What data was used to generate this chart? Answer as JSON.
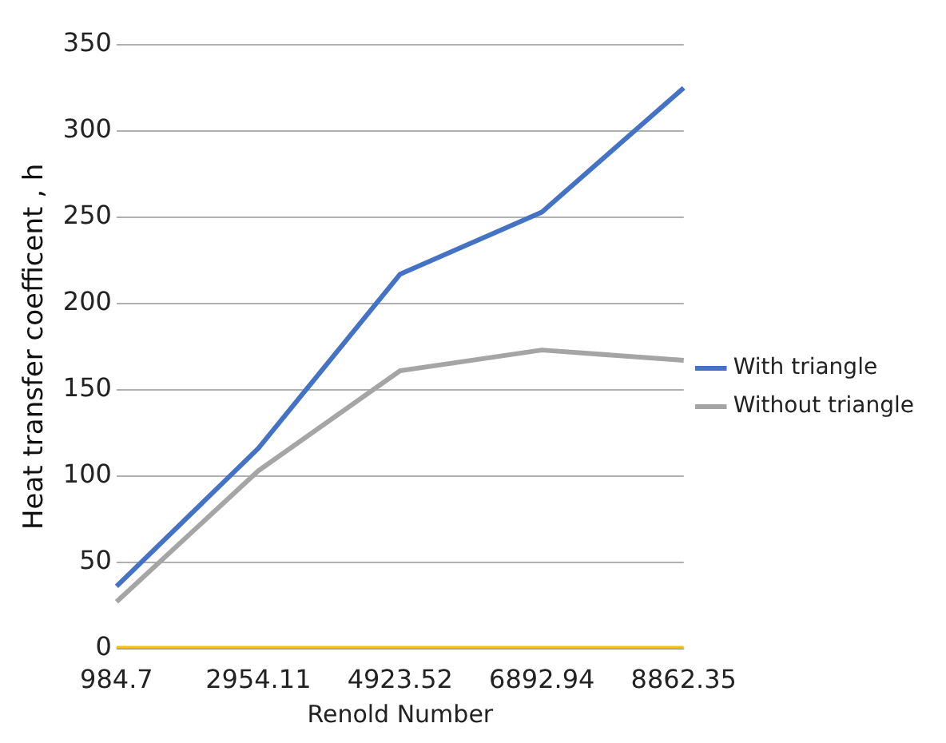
{
  "chart_data": {
    "type": "line",
    "xlabel": "Renold Number",
    "ylabel": "Heat transfer coefficent , h",
    "categories": [
      "984.7",
      "2954.11",
      "4923.52",
      "6892.94",
      "8862.35"
    ],
    "series": [
      {
        "name": "With triangle",
        "color": "#4472c4",
        "values": [
          36,
          116,
          217,
          253,
          325
        ]
      },
      {
        "name": "Without triangle",
        "color": "#a5a5a5",
        "values": [
          27,
          103,
          161,
          173,
          167
        ]
      },
      {
        "color": "#ffc000",
        "values": [
          0,
          0,
          0,
          0,
          0
        ]
      }
    ],
    "ylim": [
      0,
      350
    ],
    "yticks": [
      0,
      50,
      100,
      150,
      200,
      250,
      300,
      350
    ],
    "grid": "y",
    "legend": "right",
    "marker": "none",
    "line_style": "solid"
  }
}
